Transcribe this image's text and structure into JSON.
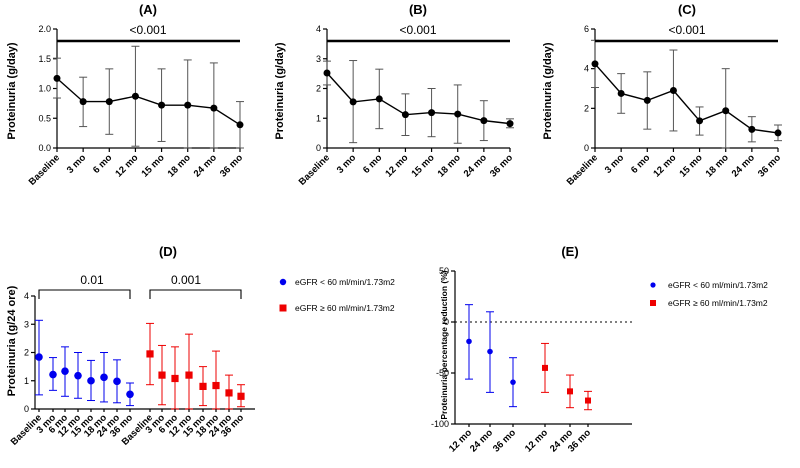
{
  "chart_data": [
    {
      "type": "line",
      "title": "(A)",
      "ylabel": "Proteinuria (g/day)",
      "xlabel": "",
      "ylim": [
        0,
        2
      ],
      "yticks": [
        "0.0",
        "0.5",
        "1.0",
        "1.5",
        "2.0"
      ],
      "categories": [
        "Baseline",
        "3 mo",
        "6 mo",
        "12 mo",
        "15 mo",
        "18 mo",
        "24 mo",
        "36 mo"
      ],
      "series": [
        {
          "name": "Proteinuria",
          "color": "#000000",
          "values": [
            1.17,
            0.78,
            0.78,
            0.87,
            0.72,
            0.72,
            0.67,
            0.39
          ],
          "err_low": [
            0.84,
            0.36,
            0.23,
            0.03,
            0.11,
            0.0,
            0.0,
            0.0
          ],
          "err_high": [
            1.51,
            1.19,
            1.33,
            1.71,
            1.33,
            1.48,
            1.43,
            0.78
          ]
        }
      ],
      "annotations": [
        {
          "text": "<0.001"
        }
      ]
    },
    {
      "type": "line",
      "title": "(B)",
      "ylabel": "Proteinuria (g/day)",
      "xlabel": "",
      "ylim": [
        0,
        4
      ],
      "yticks": [
        "0",
        "1",
        "2",
        "3",
        "4"
      ],
      "categories": [
        "Baseline",
        "3 mo",
        "6 mo",
        "12 mo",
        "15 mo",
        "18 mo",
        "24 mo",
        "36 mo"
      ],
      "series": [
        {
          "name": "Proteinuria",
          "color": "#000000",
          "values": [
            2.52,
            1.55,
            1.65,
            1.12,
            1.19,
            1.14,
            0.92,
            0.82
          ],
          "err_low": [
            2.12,
            0.18,
            0.65,
            0.42,
            0.38,
            0.16,
            0.25,
            0.68
          ],
          "err_high": [
            2.92,
            2.94,
            2.65,
            1.82,
            2.0,
            2.12,
            1.59,
            0.98
          ]
        }
      ],
      "annotations": [
        {
          "text": "<0.001"
        }
      ]
    },
    {
      "type": "line",
      "title": "(C)",
      "ylabel": "Proteinuria (g/day)",
      "xlabel": "",
      "ylim": [
        0,
        6
      ],
      "yticks": [
        "0",
        "2",
        "4",
        "6"
      ],
      "categories": [
        "Baseline",
        "3 mo",
        "6 mo",
        "12 mo",
        "15 mo",
        "18 mo",
        "24 mo",
        "36 mo"
      ],
      "series": [
        {
          "name": "Proteinuria",
          "color": "#000000",
          "values": [
            4.24,
            2.75,
            2.4,
            2.9,
            1.37,
            1.88,
            0.94,
            0.76
          ],
          "err_low": [
            3.05,
            1.75,
            0.95,
            0.86,
            0.65,
            0.0,
            0.31,
            0.37
          ],
          "err_high": [
            5.43,
            3.75,
            3.84,
            4.94,
            2.07,
            4.0,
            1.58,
            1.16
          ]
        }
      ],
      "annotations": [
        {
          "text": "<0.001"
        }
      ]
    },
    {
      "type": "scatter",
      "title": "(D)",
      "ylabel": "Proteinuria (g/24 ore)",
      "xlabel": "",
      "ylim": [
        0,
        4
      ],
      "yticks": [
        "0",
        "1",
        "2",
        "3",
        "4"
      ],
      "categories": [
        "Baseline",
        "3 mo",
        "6 mo",
        "12 mo",
        "15 mo",
        "18 mo",
        "24 mo",
        "36 mo"
      ],
      "series": [
        {
          "name": "eGFR < 60 ml/min/1.73m2",
          "color": "#0000ee",
          "marker": "circle",
          "values": [
            1.84,
            1.22,
            1.34,
            1.18,
            1.0,
            1.12,
            0.98,
            0.52
          ],
          "err_low": [
            0.5,
            0.66,
            0.45,
            0.38,
            0.3,
            0.25,
            0.22,
            0.12
          ],
          "err_high": [
            3.14,
            1.82,
            2.2,
            2.0,
            1.72,
            2.0,
            1.74,
            0.92
          ]
        },
        {
          "name": "eGFR ≥ 60 ml/min/1.73m2",
          "color": "#ee0000",
          "marker": "square",
          "values": [
            1.95,
            1.2,
            1.08,
            1.2,
            0.8,
            0.83,
            0.57,
            0.45
          ],
          "err_low": [
            0.86,
            0.15,
            0.0,
            0.0,
            0.12,
            0.0,
            0.0,
            0.08
          ],
          "err_high": [
            3.03,
            2.25,
            2.2,
            2.65,
            1.5,
            2.05,
            1.2,
            0.86
          ]
        }
      ],
      "annotations": [
        {
          "text": "0.01"
        },
        {
          "text": "0.001"
        }
      ],
      "legend": "right"
    },
    {
      "type": "scatter",
      "title": "(E)",
      "ylabel": "Proteinuria percentage reduction (%)",
      "xlabel": "",
      "ylim": [
        -100,
        50
      ],
      "yticks": [
        "-100",
        "-50",
        "0",
        "50"
      ],
      "reference_line": 0,
      "series": [
        {
          "name": "eGFR < 60 ml/min/1.73m2",
          "color": "#0000ee",
          "marker": "circle",
          "categories": [
            "12 mo",
            "24 mo",
            "36 mo"
          ],
          "values": [
            -19,
            -29,
            -59
          ],
          "err_low": [
            -56,
            -69,
            -83
          ],
          "err_high": [
            17,
            10,
            -35
          ]
        },
        {
          "name": "eGFR ≥ 60 ml/min/1.73m2",
          "color": "#ee0000",
          "marker": "square",
          "categories": [
            "12 mo",
            "24 mo",
            "36 mo"
          ],
          "values": [
            -45,
            -68,
            -77
          ],
          "err_low": [
            -69,
            -84,
            -86
          ],
          "err_high": [
            -21,
            -52,
            -68
          ]
        }
      ],
      "legend": "right"
    }
  ]
}
